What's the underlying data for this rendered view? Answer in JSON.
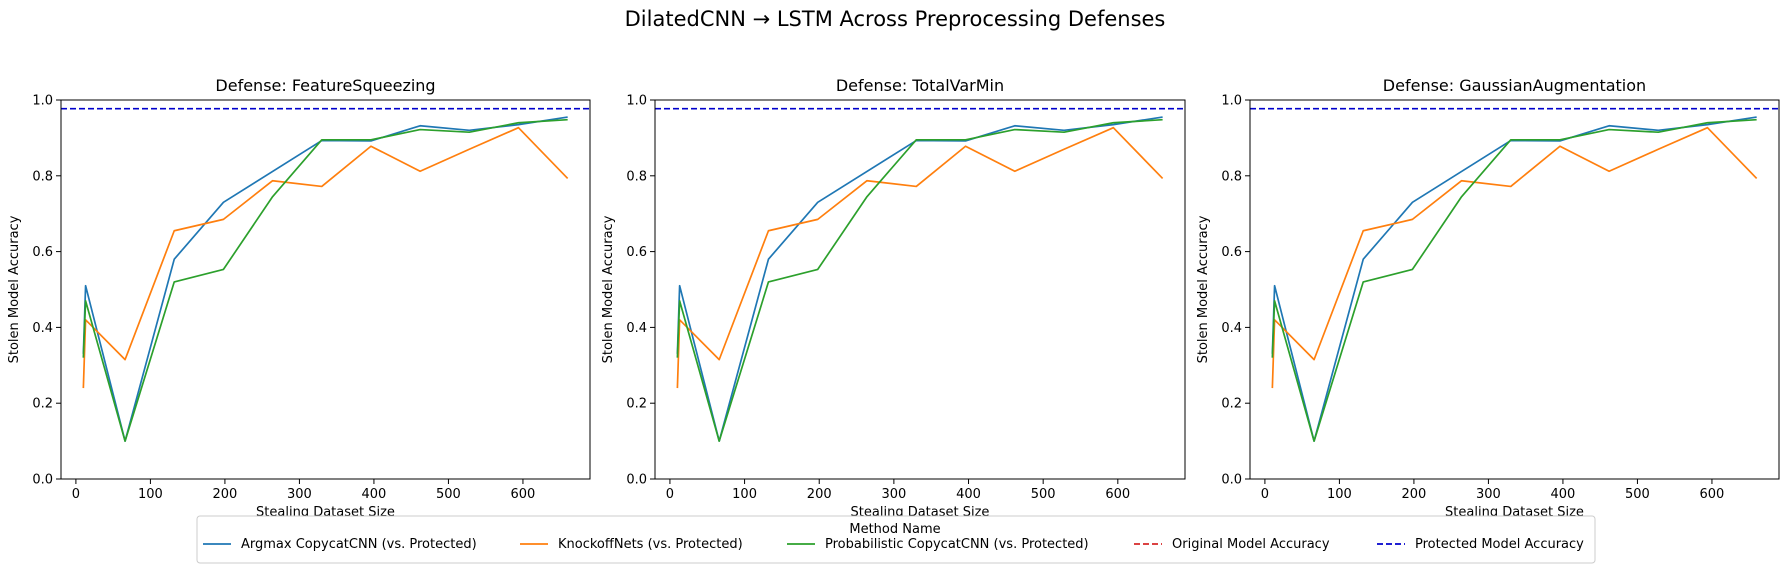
{
  "figure_title": "DilatedCNN → LSTM Across Preprocessing Defenses",
  "legend": {
    "title": "Method Name",
    "entries": [
      {
        "label": "Argmax CopycatCNN (vs. Protected)",
        "color": "#1f77b4",
        "style": "solid"
      },
      {
        "label": "KnockoffNets (vs. Protected)",
        "color": "#ff7f0e",
        "style": "solid"
      },
      {
        "label": "Probabilistic CopycatCNN (vs. Protected)",
        "color": "#2ca02c",
        "style": "solid"
      },
      {
        "label": "Original Model Accuracy",
        "color": "#d62728",
        "style": "dashed"
      },
      {
        "label": "Protected Model Accuracy",
        "color": "#0000cc",
        "style": "dashed"
      }
    ]
  },
  "chart_data": [
    {
      "type": "line",
      "title": "Defense: FeatureSqueezing",
      "xlabel": "Stealing Dataset Size",
      "ylabel": "Stolen Model Accuracy",
      "xlim": [
        -20,
        690
      ],
      "ylim": [
        0.0,
        1.0
      ],
      "xticks": [
        0,
        100,
        200,
        300,
        400,
        500,
        600
      ],
      "yticks": [
        0.0,
        0.2,
        0.4,
        0.6,
        0.8,
        1.0
      ],
      "grid": false,
      "hlines": [
        {
          "name": "Protected Model Accuracy",
          "y": 0.977,
          "color": "#0000cc",
          "style": "dashed"
        }
      ],
      "series": [
        {
          "name": "Argmax CopycatCNN (vs. Protected)",
          "color": "#1f77b4",
          "x": [
            10,
            13,
            66,
            132,
            198,
            330,
            396,
            462,
            528,
            594,
            660
          ],
          "y": [
            0.33,
            0.51,
            0.1,
            0.58,
            0.73,
            0.893,
            0.892,
            0.932,
            0.92,
            0.935,
            0.955
          ]
        },
        {
          "name": "KnockoffNets (vs. Protected)",
          "color": "#ff7f0e",
          "x": [
            10,
            13,
            66,
            132,
            198,
            264,
            330,
            396,
            462,
            528,
            594,
            660
          ],
          "y": [
            0.24,
            0.42,
            0.315,
            0.655,
            0.685,
            0.787,
            0.772,
            0.878,
            0.812,
            0.87,
            0.927,
            0.793
          ]
        },
        {
          "name": "Probabilistic CopycatCNN (vs. Protected)",
          "color": "#2ca02c",
          "x": [
            10,
            13,
            66,
            132,
            198,
            264,
            330,
            396,
            462,
            528,
            594,
            660
          ],
          "y": [
            0.32,
            0.47,
            0.1,
            0.52,
            0.553,
            0.745,
            0.895,
            0.895,
            0.922,
            0.915,
            0.94,
            0.948
          ]
        }
      ]
    },
    {
      "type": "line",
      "title": "Defense: TotalVarMin",
      "xlabel": "Stealing Dataset Size",
      "ylabel": "Stolen Model Accuracy",
      "xlim": [
        -20,
        690
      ],
      "ylim": [
        0.0,
        1.0
      ],
      "xticks": [
        0,
        100,
        200,
        300,
        400,
        500,
        600
      ],
      "yticks": [
        0.0,
        0.2,
        0.4,
        0.6,
        0.8,
        1.0
      ],
      "grid": false,
      "hlines": [
        {
          "name": "Protected Model Accuracy",
          "y": 0.977,
          "color": "#0000cc",
          "style": "dashed"
        }
      ],
      "series": [
        {
          "name": "Argmax CopycatCNN (vs. Protected)",
          "color": "#1f77b4",
          "x": [
            10,
            13,
            66,
            132,
            198,
            330,
            396,
            462,
            528,
            594,
            660
          ],
          "y": [
            0.33,
            0.51,
            0.1,
            0.58,
            0.73,
            0.893,
            0.892,
            0.932,
            0.92,
            0.935,
            0.955
          ]
        },
        {
          "name": "KnockoffNets (vs. Protected)",
          "color": "#ff7f0e",
          "x": [
            10,
            13,
            66,
            132,
            198,
            264,
            330,
            396,
            462,
            528,
            594,
            660
          ],
          "y": [
            0.24,
            0.42,
            0.315,
            0.655,
            0.685,
            0.787,
            0.772,
            0.878,
            0.812,
            0.87,
            0.927,
            0.793
          ]
        },
        {
          "name": "Probabilistic CopycatCNN (vs. Protected)",
          "color": "#2ca02c",
          "x": [
            10,
            13,
            66,
            132,
            198,
            264,
            330,
            396,
            462,
            528,
            594,
            660
          ],
          "y": [
            0.32,
            0.47,
            0.1,
            0.52,
            0.553,
            0.745,
            0.895,
            0.895,
            0.922,
            0.915,
            0.94,
            0.948
          ]
        }
      ]
    },
    {
      "type": "line",
      "title": "Defense: GaussianAugmentation",
      "xlabel": "Stealing Dataset Size",
      "ylabel": "Stolen Model Accuracy",
      "xlim": [
        -20,
        690
      ],
      "ylim": [
        0.0,
        1.0
      ],
      "xticks": [
        0,
        100,
        200,
        300,
        400,
        500,
        600
      ],
      "yticks": [
        0.0,
        0.2,
        0.4,
        0.6,
        0.8,
        1.0
      ],
      "grid": false,
      "hlines": [
        {
          "name": "Protected Model Accuracy",
          "y": 0.977,
          "color": "#0000cc",
          "style": "dashed"
        }
      ],
      "series": [
        {
          "name": "Argmax CopycatCNN (vs. Protected)",
          "color": "#1f77b4",
          "x": [
            10,
            13,
            66,
            132,
            198,
            330,
            396,
            462,
            528,
            594,
            660
          ],
          "y": [
            0.33,
            0.51,
            0.1,
            0.58,
            0.73,
            0.893,
            0.892,
            0.932,
            0.92,
            0.935,
            0.955
          ]
        },
        {
          "name": "KnockoffNets (vs. Protected)",
          "color": "#ff7f0e",
          "x": [
            10,
            13,
            66,
            132,
            198,
            264,
            330,
            396,
            462,
            528,
            594,
            660
          ],
          "y": [
            0.24,
            0.42,
            0.315,
            0.655,
            0.685,
            0.787,
            0.772,
            0.878,
            0.812,
            0.87,
            0.927,
            0.793
          ]
        },
        {
          "name": "Probabilistic CopycatCNN (vs. Protected)",
          "color": "#2ca02c",
          "x": [
            10,
            13,
            66,
            132,
            198,
            264,
            330,
            396,
            462,
            528,
            594,
            660
          ],
          "y": [
            0.32,
            0.47,
            0.1,
            0.52,
            0.553,
            0.745,
            0.895,
            0.895,
            0.922,
            0.915,
            0.94,
            0.948
          ]
        }
      ]
    }
  ]
}
